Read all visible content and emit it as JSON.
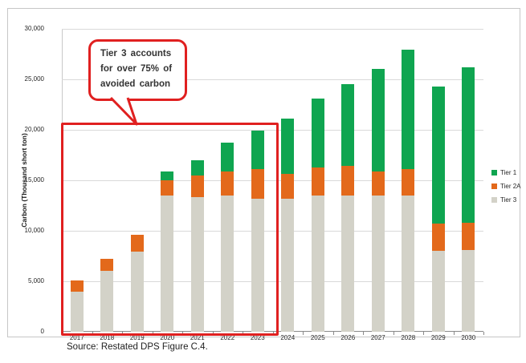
{
  "figure": {
    "source_note": "Source: Restated DPS Figure C.4."
  },
  "annotation": {
    "callout_lines": [
      "Tier 3 accounts",
      "for over 75% of",
      "avoided carbon"
    ],
    "highlighted_years": "2017-2023",
    "accent_color": "#e02020"
  },
  "chart_data": {
    "type": "bar",
    "stacked": true,
    "title": "",
    "xlabel": "",
    "ylabel": "Carbon (Thousand short ton)",
    "ylim": [
      0,
      30000
    ],
    "ytick_step": 5000,
    "ytick_labels": [
      "0",
      "5,000",
      "10,000",
      "15,000",
      "20,000",
      "25,000",
      "30,000"
    ],
    "grid": true,
    "legend_position": "right",
    "categories": [
      "2017",
      "2018",
      "2019",
      "2020",
      "2021",
      "2022",
      "2023",
      "2024",
      "2025",
      "2026",
      "2027",
      "2028",
      "2029",
      "2030"
    ],
    "series": [
      {
        "name": "Tier 1",
        "color": "#0fa550",
        "values": [
          0,
          0,
          0,
          900,
          1500,
          2800,
          3800,
          5500,
          6800,
          8100,
          10100,
          11800,
          13600,
          15400
        ]
      },
      {
        "name": "Tier 2A",
        "color": "#e3691b",
        "values": [
          1100,
          1200,
          1700,
          1500,
          2200,
          2400,
          2900,
          2400,
          2800,
          2900,
          2400,
          2600,
          2700,
          2700
        ]
      },
      {
        "name": "Tier 3",
        "color": "#d3d2c8",
        "values": [
          4000,
          6000,
          7900,
          13500,
          13300,
          13500,
          13200,
          13200,
          13500,
          13500,
          13500,
          13500,
          8000,
          8100
        ]
      }
    ],
    "stack_order_bottom_to_top": [
      "Tier 3",
      "Tier 2A",
      "Tier 1"
    ],
    "totals": [
      5100,
      7200,
      9600,
      15900,
      17000,
      18700,
      19900,
      21100,
      23100,
      24500,
      26000,
      27900,
      24300,
      26200
    ]
  }
}
